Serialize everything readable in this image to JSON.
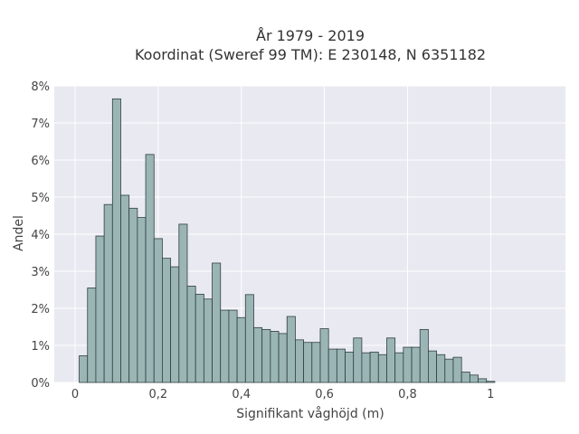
{
  "chart_data": {
    "type": "bar",
    "title_lines": [
      "År 1979 - 2019",
      "Koordinat (Sweref 99 TM): E 230148, N 6351182"
    ],
    "xlabel": "Signifikant våghöjd (m)",
    "ylabel": "Andel",
    "xlim": [
      -0.05,
      1.18
    ],
    "ylim": [
      0,
      8
    ],
    "x_ticks": [
      0,
      0.2,
      0.4,
      0.6,
      0.8,
      1
    ],
    "x_tick_labels": [
      "0",
      "0,2",
      "0,4",
      "0,6",
      "0,8",
      "1"
    ],
    "y_ticks": [
      0,
      1,
      2,
      3,
      4,
      5,
      6,
      7,
      8
    ],
    "y_tick_labels": [
      "0%",
      "1%",
      "2%",
      "3%",
      "4%",
      "5%",
      "6%",
      "7%",
      "8%"
    ],
    "bin_start": 0.01,
    "bin_width": 0.02,
    "values": [
      0.72,
      2.55,
      3.95,
      4.8,
      7.65,
      5.05,
      4.7,
      4.45,
      6.15,
      3.88,
      3.35,
      3.12,
      4.27,
      2.6,
      2.38,
      2.25,
      3.22,
      1.95,
      1.95,
      1.75,
      2.37,
      1.48,
      1.43,
      1.38,
      1.32,
      1.78,
      1.15,
      1.08,
      1.08,
      1.45,
      0.9,
      0.9,
      0.82,
      1.2,
      0.8,
      0.82,
      0.75,
      1.2,
      0.8,
      0.95,
      0.95,
      1.43,
      0.85,
      0.75,
      0.63,
      0.68,
      0.28,
      0.2,
      0.1,
      0.03
    ],
    "grid": true,
    "colors": {
      "bar_fill": "#9bb5b5",
      "bar_stroke": "#2f4040",
      "plot_background": "#e9e9f1",
      "grid": "#ffffff"
    }
  }
}
